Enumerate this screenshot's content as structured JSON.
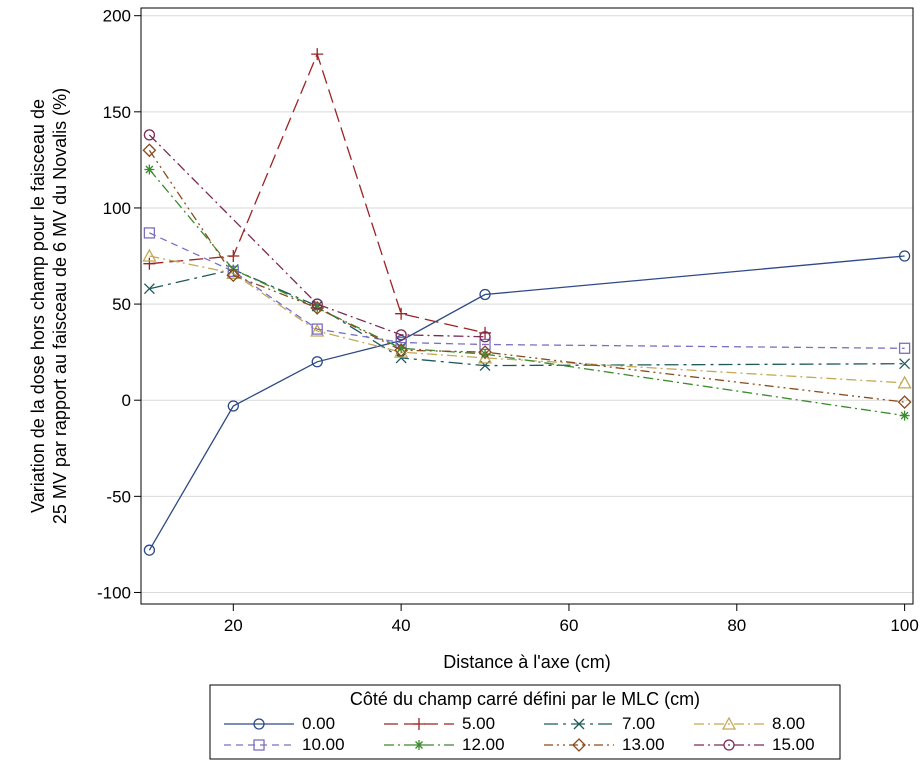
{
  "chart_data": {
    "type": "line",
    "xlabel": "Distance à l'axe (cm)",
    "ylabel_lines": [
      "Variation de la dose hors champ pour le faisceau de",
      "25 MV par rapport au faisceau de 6 MV du Novalis (%)"
    ],
    "x_ticks": [
      20,
      40,
      60,
      80,
      100
    ],
    "y_ticks": [
      -100,
      -50,
      0,
      50,
      100,
      150,
      200
    ],
    "y_tick_labels": [
      "-100",
      "-50",
      "0",
      "50",
      "100",
      "150",
      "200"
    ],
    "xlim": [
      9,
      101
    ],
    "ylim": [
      -106,
      204
    ],
    "grid": "horizontal",
    "legend": {
      "position": "bottom",
      "title": "Côté du champ carré défini par le MLC (cm)"
    },
    "x": [
      10,
      20,
      30,
      40,
      50,
      100
    ],
    "series": [
      {
        "name": "0.00",
        "color": "#2d4a86",
        "marker": "circle",
        "dash": "solid",
        "values": [
          -78,
          -3,
          20,
          31,
          55,
          75
        ]
      },
      {
        "name": "5.00",
        "color": "#9b2423",
        "marker": "plus",
        "dash": "long-dash",
        "values": [
          71,
          75,
          180,
          45,
          35,
          null
        ]
      },
      {
        "name": "7.00",
        "color": "#1f5a5a",
        "marker": "x",
        "dash": "long-dash-dot",
        "values": [
          58,
          68,
          49,
          22,
          18,
          19
        ]
      },
      {
        "name": "8.00",
        "color": "#c3a957",
        "marker": "triangle",
        "dash": "dash-dot",
        "values": [
          75,
          66,
          36,
          25,
          22,
          9
        ]
      },
      {
        "name": "10.00",
        "color": "#7b6fc1",
        "marker": "square",
        "dash": "short-dash",
        "values": [
          87,
          67,
          37,
          30,
          29,
          27
        ]
      },
      {
        "name": "12.00",
        "color": "#3b8a2e",
        "marker": "star",
        "dash": "dash-dot",
        "values": [
          120,
          68,
          48,
          27,
          24,
          -8
        ]
      },
      {
        "name": "13.00",
        "color": "#8a4a1c",
        "marker": "diamond",
        "dash": "dash-dot-dot",
        "values": [
          130,
          65,
          48,
          26,
          25,
          -1
        ]
      },
      {
        "name": "15.00",
        "color": "#7a2a55",
        "marker": "circle",
        "dash": "dash-dot",
        "values": [
          138,
          null,
          50,
          34,
          33,
          null
        ]
      }
    ]
  }
}
